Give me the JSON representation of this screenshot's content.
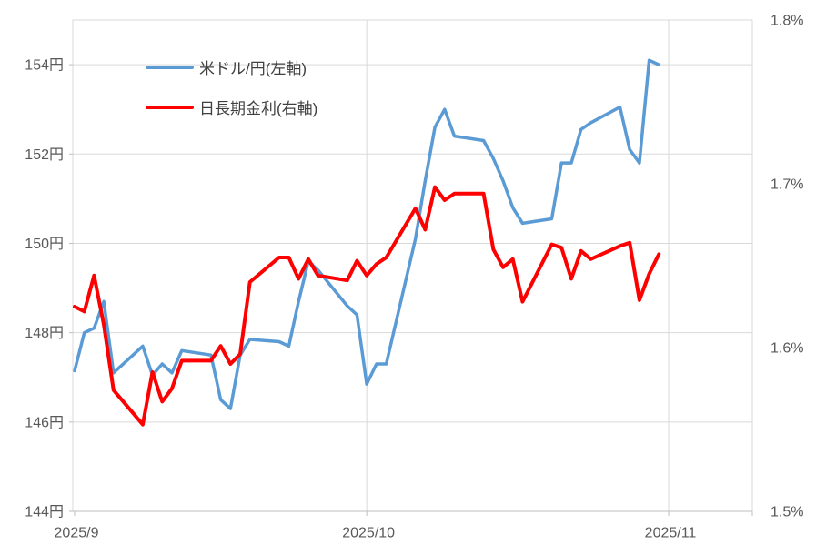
{
  "chart_data": {
    "type": "line",
    "title": "",
    "x": [
      "2025-09-01",
      "2025-09-02",
      "2025-09-03",
      "2025-09-04",
      "2025-09-05",
      "2025-09-08",
      "2025-09-09",
      "2025-09-10",
      "2025-09-11",
      "2025-09-12",
      "2025-09-15",
      "2025-09-16",
      "2025-09-17",
      "2025-09-18",
      "2025-09-19",
      "2025-09-22",
      "2025-09-23",
      "2025-09-24",
      "2025-09-25",
      "2025-09-26",
      "2025-09-29",
      "2025-09-30",
      "2025-10-01",
      "2025-10-02",
      "2025-10-03",
      "2025-10-06",
      "2025-10-07",
      "2025-10-08",
      "2025-10-09",
      "2025-10-10",
      "2025-10-13",
      "2025-10-14",
      "2025-10-15",
      "2025-10-16",
      "2025-10-17",
      "2025-10-20",
      "2025-10-21",
      "2025-10-22",
      "2025-10-23",
      "2025-10-24",
      "2025-10-27",
      "2025-10-28",
      "2025-10-29",
      "2025-10-30",
      "2025-10-31"
    ],
    "series": [
      {
        "name": "米ドル/円(左軸)",
        "axis": "left",
        "color": "#5B9BD5",
        "width": 3.5,
        "values": [
          147.15,
          148.0,
          148.1,
          148.7,
          147.1,
          147.7,
          147.05,
          147.3,
          147.1,
          147.6,
          147.5,
          146.5,
          146.3,
          147.5,
          147.85,
          147.8,
          147.7,
          148.7,
          149.6,
          149.4,
          148.6,
          148.4,
          146.85,
          147.3,
          147.3,
          150.1,
          151.4,
          152.6,
          153.0,
          152.4,
          152.3,
          151.9,
          151.4,
          150.8,
          150.45,
          150.55,
          151.8,
          151.8,
          152.55,
          152.7,
          153.05,
          152.1,
          151.8,
          154.1,
          154.0
        ]
      },
      {
        "name": "日長期金利(右軸)",
        "axis": "right",
        "color": "#FF0000",
        "width": 4,
        "values": [
          1.625,
          1.622,
          1.644,
          1.614,
          1.574,
          1.553,
          1.585,
          1.567,
          1.575,
          1.592,
          1.592,
          1.601,
          1.59,
          1.596,
          1.64,
          1.655,
          1.655,
          1.642,
          1.654,
          1.644,
          1.641,
          1.653,
          1.644,
          1.651,
          1.655,
          1.685,
          1.672,
          1.698,
          1.69,
          1.694,
          1.694,
          1.66,
          1.649,
          1.654,
          1.628,
          1.663,
          1.661,
          1.642,
          1.659,
          1.654,
          1.662,
          1.664,
          1.629,
          1.645,
          1.657
        ]
      }
    ],
    "left_axis": {
      "min": 144,
      "max": 155,
      "ticks": [
        {
          "value": 154,
          "label": "154円"
        },
        {
          "value": 152,
          "label": "152円"
        },
        {
          "value": 150,
          "label": "150円"
        },
        {
          "value": 148,
          "label": "148円"
        },
        {
          "value": 146,
          "label": "146円"
        },
        {
          "value": 144,
          "label": "144円"
        }
      ]
    },
    "right_axis": {
      "min": 1.5,
      "max": 1.8,
      "ticks": [
        {
          "value": 1.8,
          "label": "1.8%"
        },
        {
          "value": 1.7,
          "label": "1.7%"
        },
        {
          "value": 1.6,
          "label": "1.6%"
        },
        {
          "value": 1.5,
          "label": "1.5%"
        }
      ]
    },
    "x_axis": {
      "ticks": [
        {
          "date": "2025-09-01",
          "label": "2025/9"
        },
        {
          "date": "2025-10-01",
          "label": "2025/10"
        },
        {
          "date": "2025-11-01",
          "label": "2025/11"
        }
      ]
    },
    "grid": true,
    "legend_position": "top-left-inside",
    "colors": {
      "gridline": "#D9D9D9",
      "axis_line": "#BFBFBF",
      "tick_text": "#595959",
      "legend_text": "#404040"
    }
  },
  "legend": {
    "item1": "米ドル/円(左軸)",
    "item2": "日長期金利(右軸)"
  }
}
